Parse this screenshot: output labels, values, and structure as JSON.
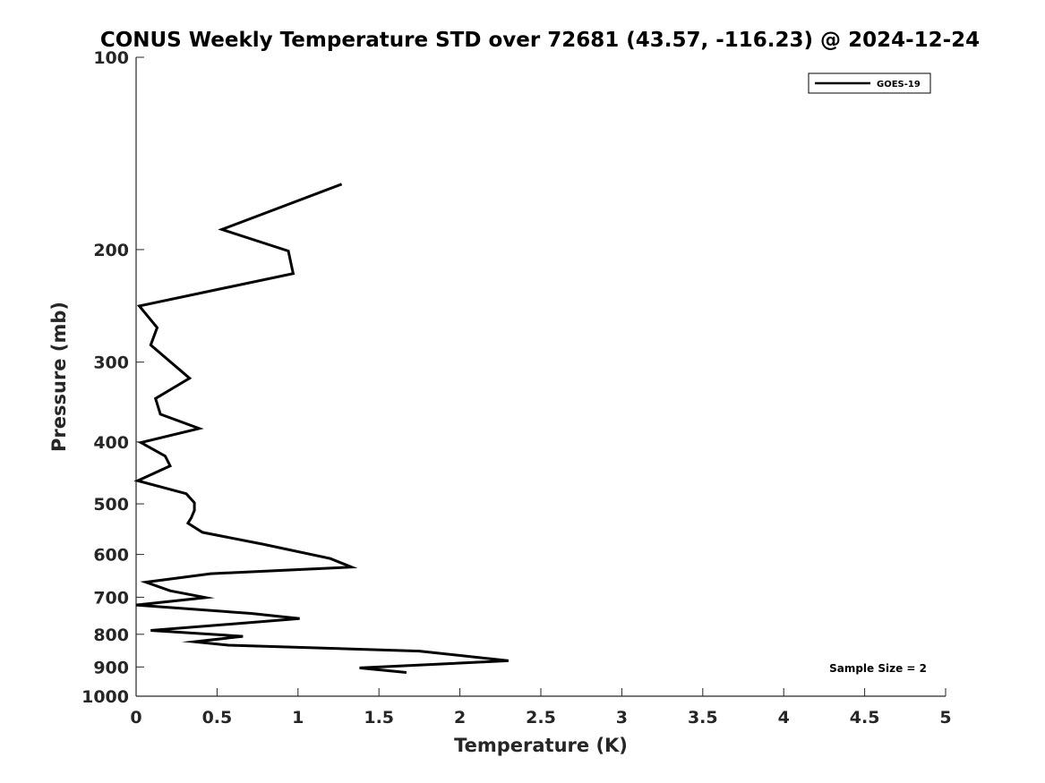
{
  "chart_data": {
    "type": "line",
    "title": "CONUS Weekly Temperature STD over 72681 (43.57, -116.23) @ 2024-12-24",
    "xlabel": "Temperature (K)",
    "ylabel": "Pressure (mb)",
    "xlim": [
      0,
      5
    ],
    "ylim": [
      100,
      1000
    ],
    "y_scale": "log",
    "y_reversed": true,
    "xticks": [
      0,
      0.5,
      1,
      1.5,
      2,
      2.5,
      3,
      3.5,
      4,
      4.5,
      5
    ],
    "xtick_labels": [
      "0",
      "0.5",
      "1",
      "1.5",
      "2",
      "2.5",
      "3",
      "3.5",
      "4",
      "4.5",
      "5"
    ],
    "yticks": [
      100,
      200,
      300,
      400,
      500,
      600,
      700,
      800,
      900,
      1000
    ],
    "ytick_labels": [
      "100",
      "200",
      "300",
      "400",
      "500",
      "600",
      "700",
      "800",
      "900",
      "1000"
    ],
    "grid": false,
    "legend_position": "top-right",
    "series": [
      {
        "name": "GOES-19",
        "color": "#000000",
        "points": [
          {
            "x": 1.27,
            "p": 158
          },
          {
            "x": 0.53,
            "p": 186
          },
          {
            "x": 0.94,
            "p": 201
          },
          {
            "x": 0.97,
            "p": 218
          },
          {
            "x": 0.02,
            "p": 245
          },
          {
            "x": 0.13,
            "p": 265
          },
          {
            "x": 0.09,
            "p": 282
          },
          {
            "x": 0.33,
            "p": 318
          },
          {
            "x": 0.12,
            "p": 342
          },
          {
            "x": 0.15,
            "p": 362
          },
          {
            "x": 0.39,
            "p": 381
          },
          {
            "x": 0.03,
            "p": 401
          },
          {
            "x": 0.18,
            "p": 421
          },
          {
            "x": 0.21,
            "p": 436
          },
          {
            "x": 0.01,
            "p": 460
          },
          {
            "x": 0.31,
            "p": 482
          },
          {
            "x": 0.36,
            "p": 498
          },
          {
            "x": 0.36,
            "p": 512
          },
          {
            "x": 0.34,
            "p": 526
          },
          {
            "x": 0.32,
            "p": 536
          },
          {
            "x": 0.41,
            "p": 554
          },
          {
            "x": 0.78,
            "p": 578
          },
          {
            "x": 1.2,
            "p": 609
          },
          {
            "x": 1.33,
            "p": 628
          },
          {
            "x": 0.46,
            "p": 643
          },
          {
            "x": 0.06,
            "p": 663
          },
          {
            "x": 0.21,
            "p": 684
          },
          {
            "x": 0.43,
            "p": 701
          },
          {
            "x": 0.0,
            "p": 720
          },
          {
            "x": 0.71,
            "p": 742
          },
          {
            "x": 1.01,
            "p": 756
          },
          {
            "x": 0.09,
            "p": 789
          },
          {
            "x": 0.66,
            "p": 806
          },
          {
            "x": 0.36,
            "p": 822
          },
          {
            "x": 0.57,
            "p": 832
          },
          {
            "x": 1.75,
            "p": 850
          },
          {
            "x": 2.3,
            "p": 880
          },
          {
            "x": 1.38,
            "p": 903
          },
          {
            "x": 1.67,
            "p": 918
          }
        ]
      }
    ],
    "annotations": [
      {
        "text": "Sample Size = 2",
        "position": "bottom-right"
      }
    ]
  }
}
